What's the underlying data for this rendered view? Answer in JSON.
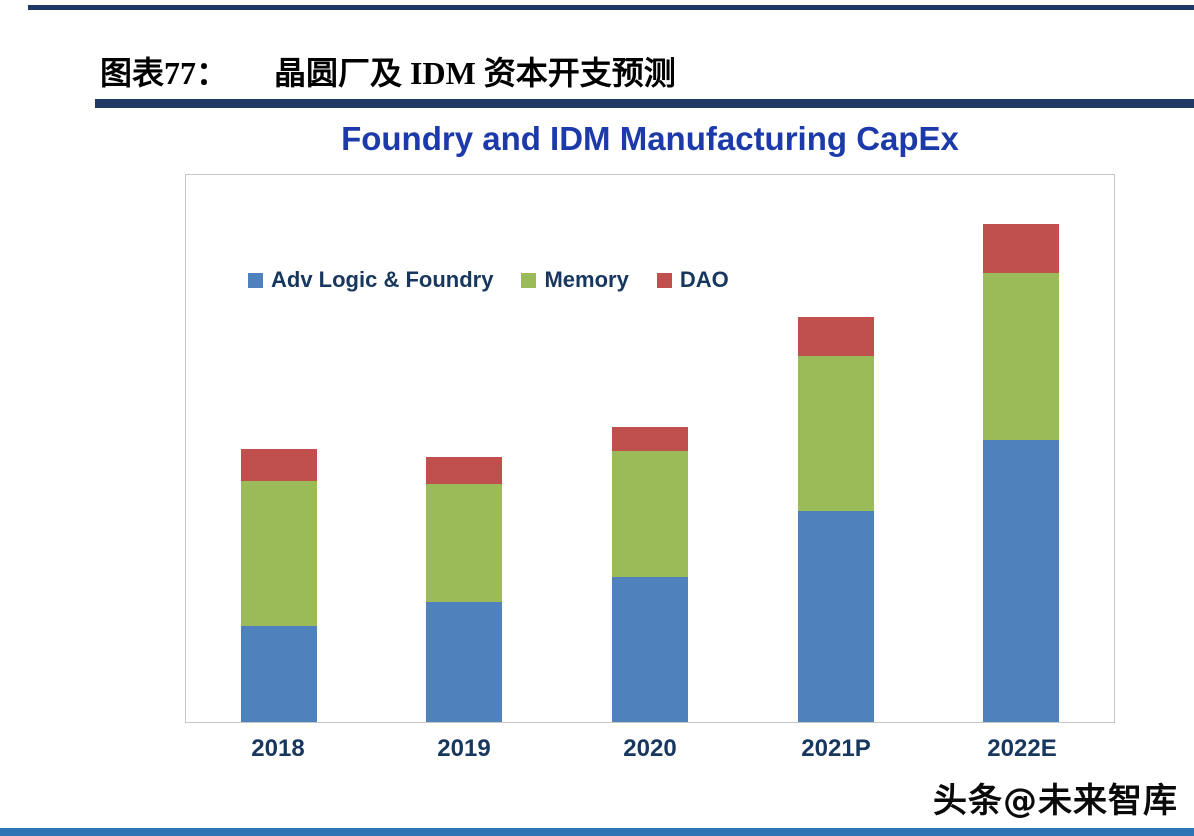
{
  "header": {
    "figure_label": "图表77：",
    "figure_title": "晶圆厂及 IDM 资本开支预测"
  },
  "chart_data": {
    "type": "bar",
    "stacked": true,
    "title": "Foundry and IDM Manufacturing CapEx",
    "title_color": "#1C3AA9",
    "categories": [
      "2018",
      "2019",
      "2020",
      "2021P",
      "2022E"
    ],
    "series": [
      {
        "name": "Adv Logic & Foundry",
        "color": "#4F81BD",
        "values": [
          35,
          44,
          53,
          77,
          103
        ]
      },
      {
        "name": "Memory",
        "color": "#9BBB59",
        "values": [
          53,
          43,
          46,
          57,
          61
        ]
      },
      {
        "name": "DAO",
        "color": "#C0504D",
        "values": [
          12,
          10,
          9,
          14,
          18
        ]
      }
    ],
    "xlabel": "",
    "ylabel": "",
    "ylim": [
      0,
      200
    ],
    "grid": false,
    "y_axis_labels_visible": false,
    "legend_position": "inside-top-left"
  },
  "footer": {
    "watermark": "头条@未来智库"
  },
  "colors": {
    "rule_navy": "#1F3864",
    "bottom_bar_blue": "#2E75B6",
    "axis_label_navy": "#17375E"
  }
}
